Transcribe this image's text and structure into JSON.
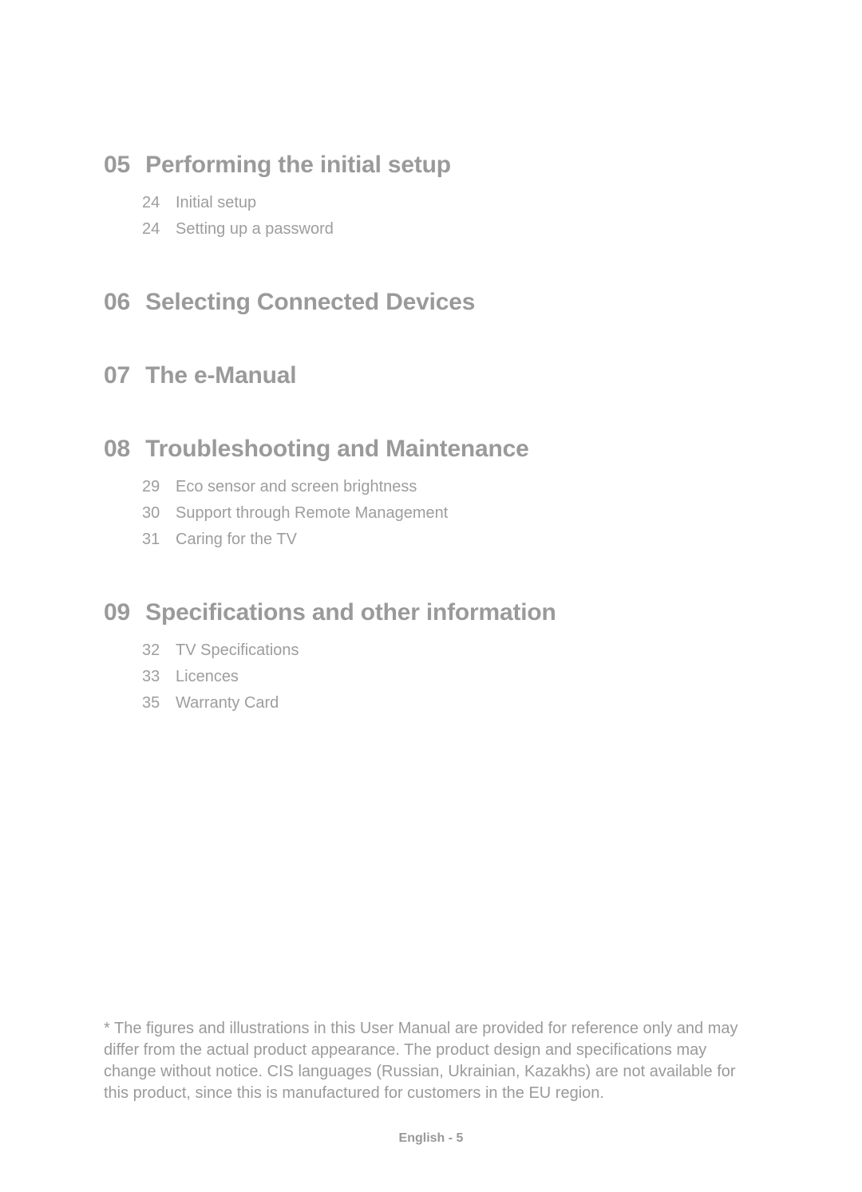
{
  "sections": [
    {
      "number": "05",
      "title": "Performing the initial setup",
      "items": [
        {
          "page": "24",
          "label": "Initial setup"
        },
        {
          "page": "24",
          "label": "Setting up a password"
        }
      ]
    },
    {
      "number": "06",
      "title": "Selecting Connected Devices",
      "items": []
    },
    {
      "number": "07",
      "title": "The e-Manual",
      "items": []
    },
    {
      "number": "08",
      "title": "Troubleshooting and Maintenance",
      "items": [
        {
          "page": "29",
          "label": "Eco sensor and screen brightness"
        },
        {
          "page": "30",
          "label": "Support through Remote Management"
        },
        {
          "page": "31",
          "label": "Caring for the TV"
        }
      ]
    },
    {
      "number": "09",
      "title": "Specifications and other information",
      "items": [
        {
          "page": "32",
          "label": "TV Specifications"
        },
        {
          "page": "33",
          "label": "Licences"
        },
        {
          "page": "35",
          "label": "Warranty Card"
        }
      ]
    }
  ],
  "footnote": "* The figures and illustrations in this User Manual are provided for reference only and may differ from the actual product appearance. The product design and specifications may change without notice. CIS languages (Russian, Ukrainian, Kazakhs) are not available for this product, since this is manufactured for customers in the EU region.",
  "footer": "English - 5",
  "colors": {
    "background": "#ffffff",
    "heading_text": "#9a9a9a",
    "body_text": "#9d9d9d",
    "footer_text": "#999999"
  },
  "typography": {
    "heading_font_size_pt": 22,
    "item_font_size_pt": 15,
    "footnote_font_size_pt": 15,
    "footer_font_size_pt": 12
  }
}
